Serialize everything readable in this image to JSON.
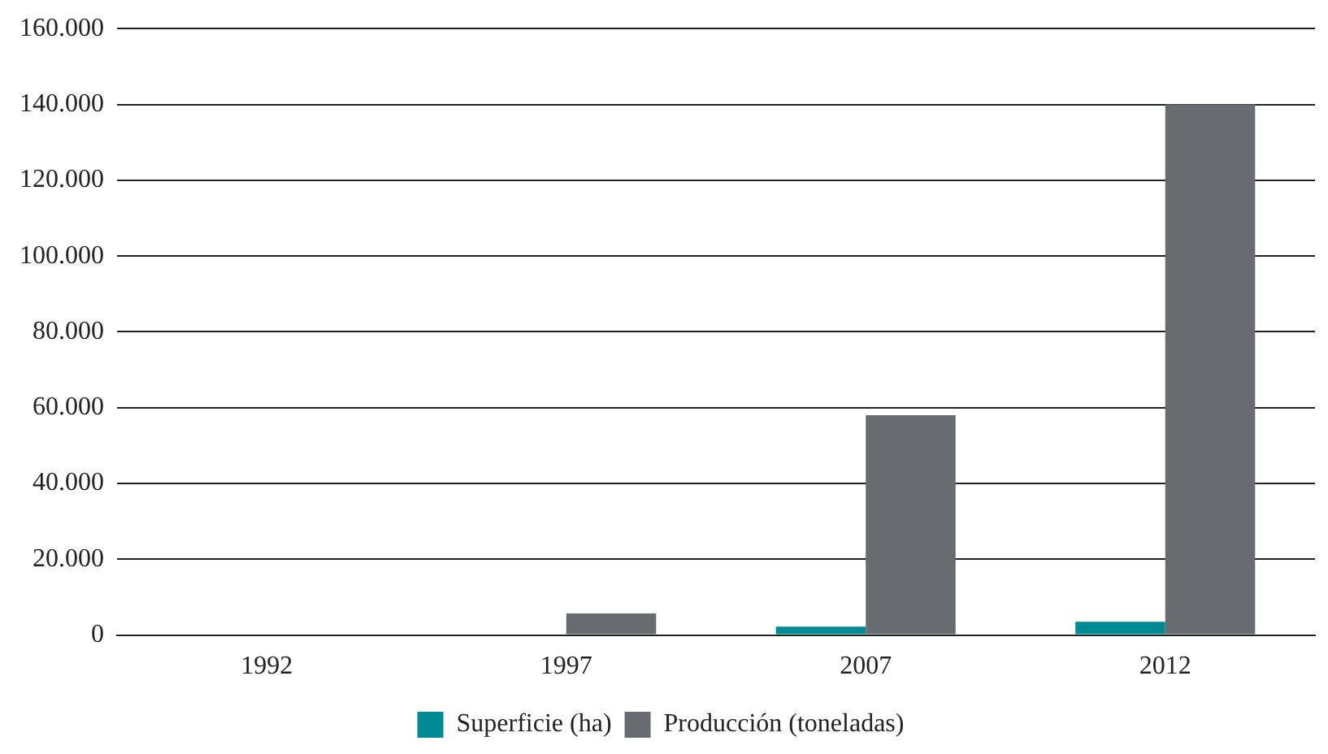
{
  "chart_data": {
    "type": "bar",
    "categories": [
      "1992",
      "1997",
      "2007",
      "2012"
    ],
    "series": [
      {
        "name": "Superficie (ha)",
        "color": "#008a94",
        "values": [
          0,
          0,
          2200,
          3500
        ]
      },
      {
        "name": "Producción (toneladas)",
        "color": "#6a6b70",
        "values": [
          0,
          5700,
          58000,
          140000
        ]
      }
    ],
    "ylim": [
      0,
      160000
    ],
    "yticks": [
      {
        "value": 0,
        "label": "0"
      },
      {
        "value": 20000,
        "label": "20.000"
      },
      {
        "value": 40000,
        "label": "40.000"
      },
      {
        "value": 60000,
        "label": "60.000"
      },
      {
        "value": 80000,
        "label": "80.000"
      },
      {
        "value": 100000,
        "label": "100.000"
      },
      {
        "value": 120000,
        "label": "120.000"
      },
      {
        "value": 140000,
        "label": "140.000"
      },
      {
        "value": 160000,
        "label": "160.000"
      }
    ],
    "grid": "y",
    "legend": "bottom"
  }
}
